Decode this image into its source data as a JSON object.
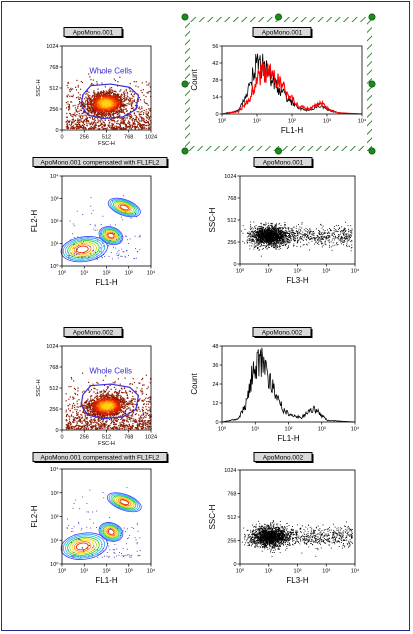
{
  "chart_data": [
    {
      "type": "scatter",
      "title": "ApoMono.001",
      "xlabel": "FSC-H",
      "ylabel": "SSC-H",
      "xlim": [
        0,
        1024
      ],
      "ylim": [
        0,
        1024
      ],
      "xticks": [
        "0",
        "256",
        "512",
        "768",
        "1024"
      ],
      "yticks": [
        "0",
        "256",
        "512",
        "768",
        "1024"
      ],
      "gate": "Whole Cells",
      "style": "density-dot",
      "population": {
        "x_center": 500,
        "y_center": 330,
        "x_spread": 180,
        "y_spread": 120
      }
    },
    {
      "type": "line",
      "title": "ApoMono.001",
      "xlabel": "FL1-H",
      "ylabel": "Count",
      "xscale": "log",
      "xlim": [
        1,
        10000
      ],
      "ylim": [
        0,
        56
      ],
      "xticks": [
        "10⁰",
        "10¹",
        "10²",
        "10³",
        "10⁴"
      ],
      "yticks": [
        "0",
        "14",
        "28",
        "42",
        "56"
      ],
      "series": [
        {
          "color": "#000000",
          "x": [
            1,
            3,
            6,
            10,
            15,
            25,
            40,
            80,
            150,
            300,
            500,
            700,
            1000,
            2000,
            10000
          ],
          "values": [
            0,
            3,
            22,
            44,
            40,
            30,
            22,
            12,
            5,
            3,
            6,
            7,
            4,
            1,
            0
          ]
        },
        {
          "color": "#ff0000",
          "x": [
            1,
            3,
            6,
            10,
            15,
            25,
            40,
            80,
            150,
            300,
            500,
            700,
            1000,
            2000,
            10000
          ],
          "values": [
            0,
            2,
            12,
            28,
            36,
            34,
            28,
            16,
            7,
            4,
            7,
            9,
            5,
            1,
            0
          ]
        }
      ]
    },
    {
      "type": "contour",
      "title": "ApoMono.001 compensated with FL1FL2",
      "xlabel": "FL1-H",
      "ylabel": "FL2-H",
      "xscale": "log",
      "yscale": "log",
      "xlim": [
        1,
        10000
      ],
      "ylim": [
        1,
        10000
      ],
      "xticks": [
        "10⁰",
        "10¹",
        "10²",
        "10³",
        "10⁴"
      ],
      "yticks": [
        "10⁰",
        "10¹",
        "10²",
        "10³",
        "10⁴"
      ]
    },
    {
      "type": "scatter",
      "title": "ApoMono.001",
      "xlabel": "FL3-H",
      "ylabel": "SSC-H",
      "xscale": "log",
      "xlim": [
        1,
        10000
      ],
      "ylim": [
        0,
        1024
      ],
      "xticks": [
        "10⁰",
        "10¹",
        "10²",
        "10³",
        "10⁴"
      ],
      "yticks": [
        "0",
        "256",
        "512",
        "768",
        "1024"
      ],
      "style": "dot",
      "population": {
        "x_center_log": 1.0,
        "y_center": 330,
        "tail_to_log": 3.9
      }
    },
    {
      "type": "scatter",
      "title": "ApoMono.002",
      "xlabel": "FSC-H",
      "ylabel": "SSC-H",
      "xlim": [
        0,
        1024
      ],
      "ylim": [
        0,
        1024
      ],
      "xticks": [
        "0",
        "256",
        "512",
        "768",
        "1024"
      ],
      "yticks": [
        "0",
        "256",
        "512",
        "768",
        "1024"
      ],
      "gate": "Whole Cells",
      "style": "density-dot",
      "population": {
        "x_center": 510,
        "y_center": 300,
        "x_spread": 180,
        "y_spread": 115
      }
    },
    {
      "type": "line",
      "title": "ApoMono.002",
      "xlabel": "FL1-H",
      "ylabel": "Count",
      "xscale": "log",
      "xlim": [
        1,
        10000
      ],
      "ylim": [
        0,
        48
      ],
      "xticks": [
        "10⁰",
        "10¹",
        "10²",
        "10³",
        "10⁴"
      ],
      "yticks": [
        "0",
        "12",
        "24",
        "36",
        "48"
      ],
      "series": [
        {
          "color": "#000000",
          "x": [
            1,
            3,
            5,
            8,
            12,
            18,
            25,
            40,
            70,
            120,
            250,
            400,
            600,
            900,
            1500,
            10000
          ],
          "values": [
            0,
            2,
            10,
            30,
            40,
            38,
            30,
            18,
            8,
            4,
            3,
            7,
            9,
            5,
            1,
            0
          ]
        }
      ]
    },
    {
      "type": "contour",
      "title": "ApoMono.001 compensated with FL1FL2",
      "xlabel": "FL1-H",
      "ylabel": "FL2-H",
      "xscale": "log",
      "yscale": "log",
      "xlim": [
        1,
        10000
      ],
      "ylim": [
        1,
        10000
      ],
      "xticks": [
        "10⁰",
        "10¹",
        "10²",
        "10³",
        "10⁴"
      ],
      "yticks": [
        "10⁰",
        "10¹",
        "10²",
        "10³",
        "10⁴"
      ]
    },
    {
      "type": "scatter",
      "title": "ApoMono.002",
      "xlabel": "FL3-H",
      "ylabel": "SSC-H",
      "xscale": "log",
      "xlim": [
        1,
        10000
      ],
      "ylim": [
        0,
        1024
      ],
      "xticks": [
        "10⁰",
        "10¹",
        "10²",
        "10³",
        "10⁴"
      ],
      "yticks": [
        "0",
        "256",
        "512",
        "768",
        "1024"
      ],
      "style": "dot",
      "population": {
        "x_center_log": 1.0,
        "y_center": 300,
        "tail_to_log": 3.9
      }
    }
  ],
  "colors": {
    "gate": "#3b2bd8",
    "selection": "#3a8a3a",
    "frame": "#2b2b8a",
    "series_1": "#000000",
    "series_2": "#ff0000"
  }
}
